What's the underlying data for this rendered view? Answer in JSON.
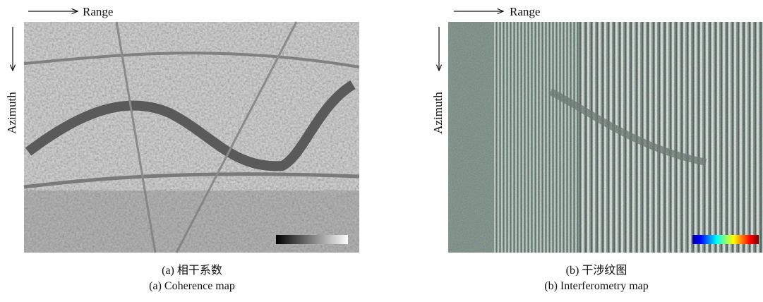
{
  "panels": [
    {
      "range_label": "Range",
      "azimuth_label": "Azimuth",
      "caption_cn": "(a) 相干系数",
      "caption_en": "(a) Coherence map"
    },
    {
      "range_label": "Range",
      "azimuth_label": "Azimuth",
      "caption_cn": "(b) 干涉纹图",
      "caption_en": "(b) Interferometry map"
    }
  ]
}
